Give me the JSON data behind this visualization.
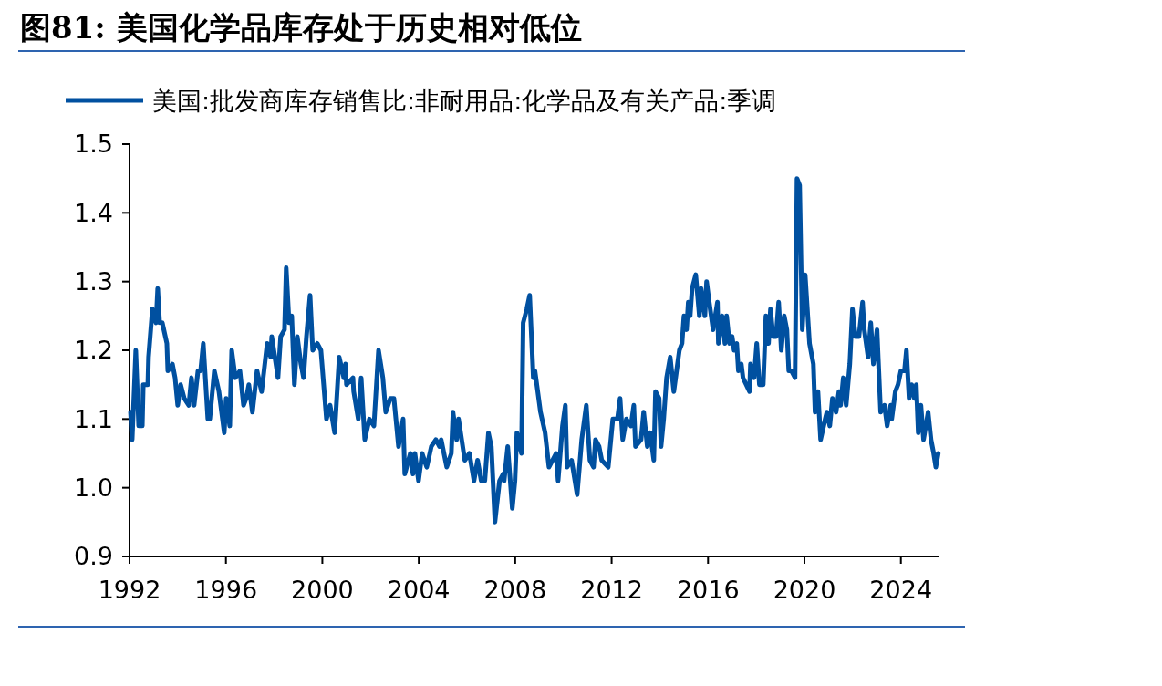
{
  "chart_data": {
    "type": "line",
    "title": "图81: 美国化学品库存处于历史相对低位",
    "x": [
      1992.04,
      1992.11,
      1992.26,
      1992.38,
      1992.53,
      1992.57,
      1992.76,
      1992.79,
      1992.95,
      1993.1,
      1993.17,
      1993.25,
      1993.36,
      1993.55,
      1993.59,
      1993.78,
      1993.89,
      1994.0,
      1994.12,
      1994.27,
      1994.46,
      1994.57,
      1994.68,
      1994.84,
      1994.95,
      1995.06,
      1995.25,
      1995.33,
      1995.52,
      1995.71,
      1995.93,
      1996.01,
      1996.16,
      1996.24,
      1996.39,
      1996.58,
      1996.73,
      1996.84,
      1996.95,
      1997.1,
      1997.29,
      1997.48,
      1997.71,
      1997.86,
      1997.9,
      1998.16,
      1998.27,
      1998.43,
      1998.5,
      1998.62,
      1998.73,
      1998.84,
      1998.96,
      1999.11,
      1999.22,
      1999.34,
      1999.49,
      1999.6,
      1999.79,
      1999.94,
      2000.17,
      2000.32,
      2000.51,
      2000.7,
      2000.89,
      2000.96,
      2001.0,
      2001.27,
      2001.3,
      2001.49,
      2001.61,
      2001.76,
      2001.95,
      2002.14,
      2002.33,
      2002.51,
      2002.63,
      2002.82,
      2002.97,
      2003.16,
      2003.35,
      2003.42,
      2003.65,
      2003.76,
      2003.84,
      2003.99,
      2004.14,
      2004.33,
      2004.52,
      2004.71,
      2004.86,
      2004.93,
      2005.16,
      2005.35,
      2005.42,
      2005.57,
      2005.65,
      2005.91,
      2006.1,
      2006.29,
      2006.44,
      2006.59,
      2006.74,
      2006.89,
      2007.01,
      2007.16,
      2007.35,
      2007.5,
      2007.54,
      2007.69,
      2007.88,
      2007.99,
      2008.07,
      2008.26,
      2008.33,
      2008.48,
      2008.6,
      2008.75,
      2008.82,
      2009.05,
      2009.24,
      2009.4,
      2009.7,
      2009.78,
      2009.96,
      2010.08,
      2010.15,
      2010.34,
      2010.57,
      2010.76,
      2010.95,
      2011.1,
      2011.25,
      2011.33,
      2011.48,
      2011.59,
      2011.86,
      2012.05,
      2012.24,
      2012.35,
      2012.46,
      2012.61,
      2012.8,
      2012.92,
      2012.99,
      2013.22,
      2013.33,
      2013.48,
      2013.6,
      2013.75,
      2013.82,
      2013.97,
      2014.05,
      2014.16,
      2014.28,
      2014.43,
      2014.58,
      2014.81,
      2014.92,
      2015.0,
      2015.11,
      2015.18,
      2015.26,
      2015.34,
      2015.49,
      2015.64,
      2015.71,
      2015.87,
      2015.94,
      2016.05,
      2016.21,
      2016.39,
      2016.43,
      2016.58,
      2016.7,
      2016.77,
      2016.89,
      2017.0,
      2017.08,
      2017.19,
      2017.26,
      2017.38,
      2017.45,
      2017.72,
      2017.76,
      2017.91,
      2018.02,
      2018.13,
      2018.29,
      2018.4,
      2018.51,
      2018.59,
      2018.7,
      2018.82,
      2018.93,
      2019.04,
      2019.16,
      2019.27,
      2019.35,
      2019.46,
      2019.61,
      2019.69,
      2019.8,
      2019.91,
      2020.03,
      2020.21,
      2020.37,
      2020.44,
      2020.56,
      2020.67,
      2020.86,
      2020.93,
      2021.05,
      2021.16,
      2021.31,
      2021.43,
      2021.5,
      2021.61,
      2021.73,
      2021.88,
      2021.99,
      2022.11,
      2022.26,
      2022.41,
      2022.48,
      2022.64,
      2022.75,
      2022.86,
      2023.01,
      2023.16,
      2023.32,
      2023.43,
      2023.58,
      2023.62,
      2023.77,
      2023.88,
      2024.0,
      2024.15,
      2024.23,
      2024.34,
      2024.45,
      2024.56,
      2024.64,
      2024.72,
      2024.83,
      2024.94,
      2025.13,
      2025.25,
      2025.36,
      2025.45,
      2025.55
    ],
    "series": [
      {
        "name": "美国:批发商库存销售比:非耐用品:化学品及有关产品:季调",
        "color": "#0050a0",
        "values": [
          1.11,
          1.07,
          1.2,
          1.09,
          1.09,
          1.15,
          1.15,
          1.19,
          1.26,
          1.24,
          1.29,
          1.24,
          1.24,
          1.21,
          1.17,
          1.18,
          1.16,
          1.12,
          1.15,
          1.13,
          1.12,
          1.16,
          1.12,
          1.17,
          1.17,
          1.21,
          1.1,
          1.1,
          1.17,
          1.14,
          1.08,
          1.13,
          1.09,
          1.2,
          1.16,
          1.17,
          1.12,
          1.13,
          1.15,
          1.11,
          1.17,
          1.14,
          1.21,
          1.19,
          1.22,
          1.16,
          1.22,
          1.23,
          1.32,
          1.24,
          1.25,
          1.15,
          1.22,
          1.18,
          1.16,
          1.22,
          1.28,
          1.2,
          1.21,
          1.2,
          1.1,
          1.12,
          1.08,
          1.19,
          1.16,
          1.18,
          1.15,
          1.16,
          1.14,
          1.1,
          1.16,
          1.07,
          1.1,
          1.09,
          1.2,
          1.16,
          1.11,
          1.13,
          1.13,
          1.06,
          1.1,
          1.02,
          1.05,
          1.02,
          1.05,
          1.01,
          1.05,
          1.03,
          1.06,
          1.07,
          1.06,
          1.07,
          1.03,
          1.05,
          1.11,
          1.07,
          1.1,
          1.04,
          1.05,
          1.01,
          1.04,
          1.01,
          1.01,
          1.08,
          1.06,
          0.95,
          1.01,
          1.02,
          1.01,
          1.06,
          0.97,
          1.01,
          1.08,
          1.05,
          1.24,
          1.26,
          1.28,
          1.16,
          1.17,
          1.11,
          1.08,
          1.03,
          1.05,
          1.01,
          1.09,
          1.12,
          1.03,
          1.04,
          0.99,
          1.07,
          1.12,
          1.04,
          1.03,
          1.07,
          1.06,
          1.04,
          1.03,
          1.1,
          1.1,
          1.13,
          1.07,
          1.1,
          1.09,
          1.12,
          1.06,
          1.07,
          1.11,
          1.06,
          1.08,
          1.04,
          1.14,
          1.13,
          1.06,
          1.1,
          1.16,
          1.19,
          1.14,
          1.2,
          1.21,
          1.25,
          1.23,
          1.27,
          1.25,
          1.29,
          1.31,
          1.25,
          1.29,
          1.25,
          1.3,
          1.27,
          1.23,
          1.27,
          1.21,
          1.25,
          1.21,
          1.25,
          1.21,
          1.22,
          1.2,
          1.21,
          1.17,
          1.18,
          1.16,
          1.14,
          1.18,
          1.16,
          1.21,
          1.15,
          1.15,
          1.25,
          1.21,
          1.26,
          1.22,
          1.22,
          1.27,
          1.2,
          1.25,
          1.23,
          1.17,
          1.17,
          1.16,
          1.45,
          1.44,
          1.23,
          1.31,
          1.21,
          1.18,
          1.11,
          1.14,
          1.07,
          1.1,
          1.11,
          1.09,
          1.13,
          1.11,
          1.14,
          1.12,
          1.16,
          1.12,
          1.18,
          1.26,
          1.22,
          1.22,
          1.27,
          1.23,
          1.19,
          1.24,
          1.18,
          1.23,
          1.11,
          1.12,
          1.09,
          1.12,
          1.1,
          1.14,
          1.15,
          1.17,
          1.17,
          1.2,
          1.13,
          1.15,
          1.13,
          1.15,
          1.08,
          1.12,
          1.07,
          1.11,
          1.07,
          1.05,
          1.03,
          1.05
        ]
      }
    ],
    "xlim": [
      1992,
      2025.6
    ],
    "xticks": [
      1992,
      1996,
      2000,
      2004,
      2008,
      2012,
      2016,
      2020,
      2024
    ],
    "ylim": [
      0.9,
      1.5
    ],
    "yticks": [
      {
        "value": 0.9,
        "label": "0.9"
      },
      {
        "value": 1,
        "label": "1.0"
      },
      {
        "value": 1.1,
        "label": "1.1"
      },
      {
        "value": 1.2,
        "label": "1.2"
      },
      {
        "value": 1.3,
        "label": "1.3"
      },
      {
        "value": 1.4,
        "label": "1.4"
      },
      {
        "value": 1.5,
        "label": "1.5"
      }
    ],
    "legend": "top",
    "grid": false
  }
}
